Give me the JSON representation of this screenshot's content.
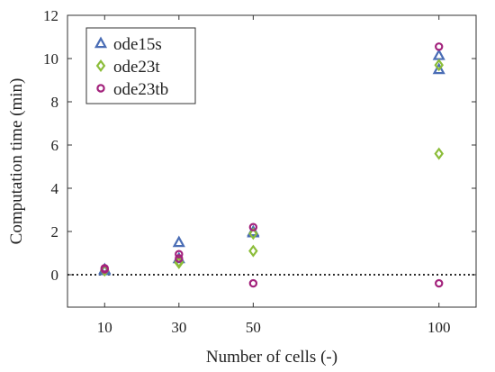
{
  "chart_data": {
    "type": "scatter",
    "title": "",
    "xlabel": "Number of cells (-)",
    "ylabel": "Computation time (min)",
    "x_categories": [
      "10",
      "30",
      "50",
      "100"
    ],
    "x_values": [
      10,
      30,
      50,
      100
    ],
    "xlim": [
      0,
      110
    ],
    "ylim": [
      -1.5,
      12
    ],
    "yticks": [
      0,
      2,
      4,
      6,
      8,
      10,
      12
    ],
    "grid": false,
    "legend_position": "top-left",
    "reference_line": {
      "y": 0,
      "style": "dotted"
    },
    "series": [
      {
        "name": "ode15s",
        "marker": "triangle-open",
        "color": "#4a6db5",
        "points": [
          {
            "x": 10,
            "y": 0.25
          },
          {
            "x": 10,
            "y": 0.2
          },
          {
            "x": 30,
            "y": 1.5
          },
          {
            "x": 30,
            "y": 0.75
          },
          {
            "x": 50,
            "y": 2.0
          },
          {
            "x": 50,
            "y": 1.95
          },
          {
            "x": 100,
            "y": 10.15
          },
          {
            "x": 100,
            "y": 9.5
          }
        ]
      },
      {
        "name": "ode23t",
        "marker": "diamond-open",
        "color": "#8cbd3a",
        "points": [
          {
            "x": 10,
            "y": 0.2
          },
          {
            "x": 30,
            "y": 0.6
          },
          {
            "x": 30,
            "y": 0.55
          },
          {
            "x": 50,
            "y": 1.9
          },
          {
            "x": 50,
            "y": 1.1
          },
          {
            "x": 100,
            "y": 9.7
          },
          {
            "x": 100,
            "y": 5.6
          }
        ]
      },
      {
        "name": "ode23tb",
        "marker": "circle-open",
        "color": "#a3237c",
        "points": [
          {
            "x": 10,
            "y": 0.3
          },
          {
            "x": 10,
            "y": 0.25
          },
          {
            "x": 30,
            "y": 0.95
          },
          {
            "x": 30,
            "y": 0.75
          },
          {
            "x": 50,
            "y": 2.2
          },
          {
            "x": 50,
            "y": -0.4
          },
          {
            "x": 100,
            "y": 10.55
          },
          {
            "x": 100,
            "y": -0.4
          }
        ]
      }
    ]
  }
}
